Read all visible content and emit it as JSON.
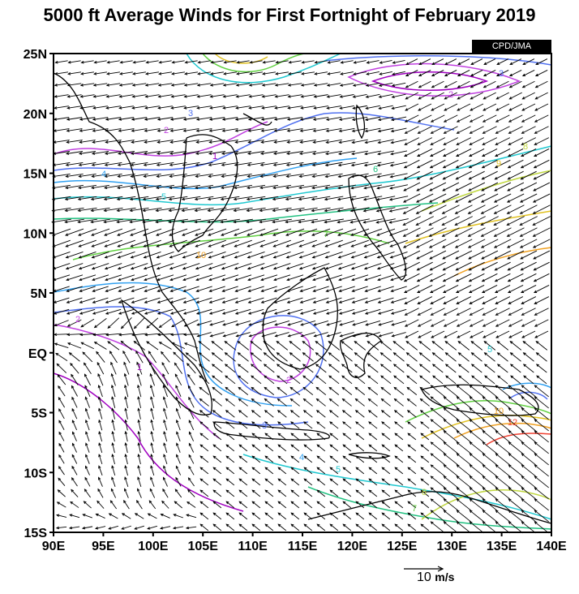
{
  "title": "5000 ft Average Winds for First Fortnight of February 2019",
  "credit": "CPD/JMA",
  "scale": {
    "value": "10",
    "unit": "m/s"
  },
  "lat_ticks": [
    "25N",
    "20N",
    "15N",
    "10N",
    "5N",
    "EQ",
    "5S",
    "10S",
    "15S"
  ],
  "lon_ticks": [
    "90E",
    "95E",
    "100E",
    "105E",
    "110E",
    "115E",
    "120E",
    "125E",
    "130E",
    "135E",
    "140E"
  ],
  "contour_labels": [
    "1",
    "2",
    "3",
    "4",
    "5",
    "6",
    "7",
    "8",
    "9",
    "10",
    "12"
  ],
  "colors": {
    "frame": "#000000",
    "coast": "#000000",
    "c1": "#a000c0",
    "c2": "#c040e0",
    "c3": "#5070f0",
    "c4": "#30a0f0",
    "c5": "#20c8d0",
    "c6": "#20c080",
    "c7": "#60d040",
    "c8": "#c0d840",
    "c9": "#e0c020",
    "c10": "#f0a020",
    "c12": "#f04030"
  }
}
